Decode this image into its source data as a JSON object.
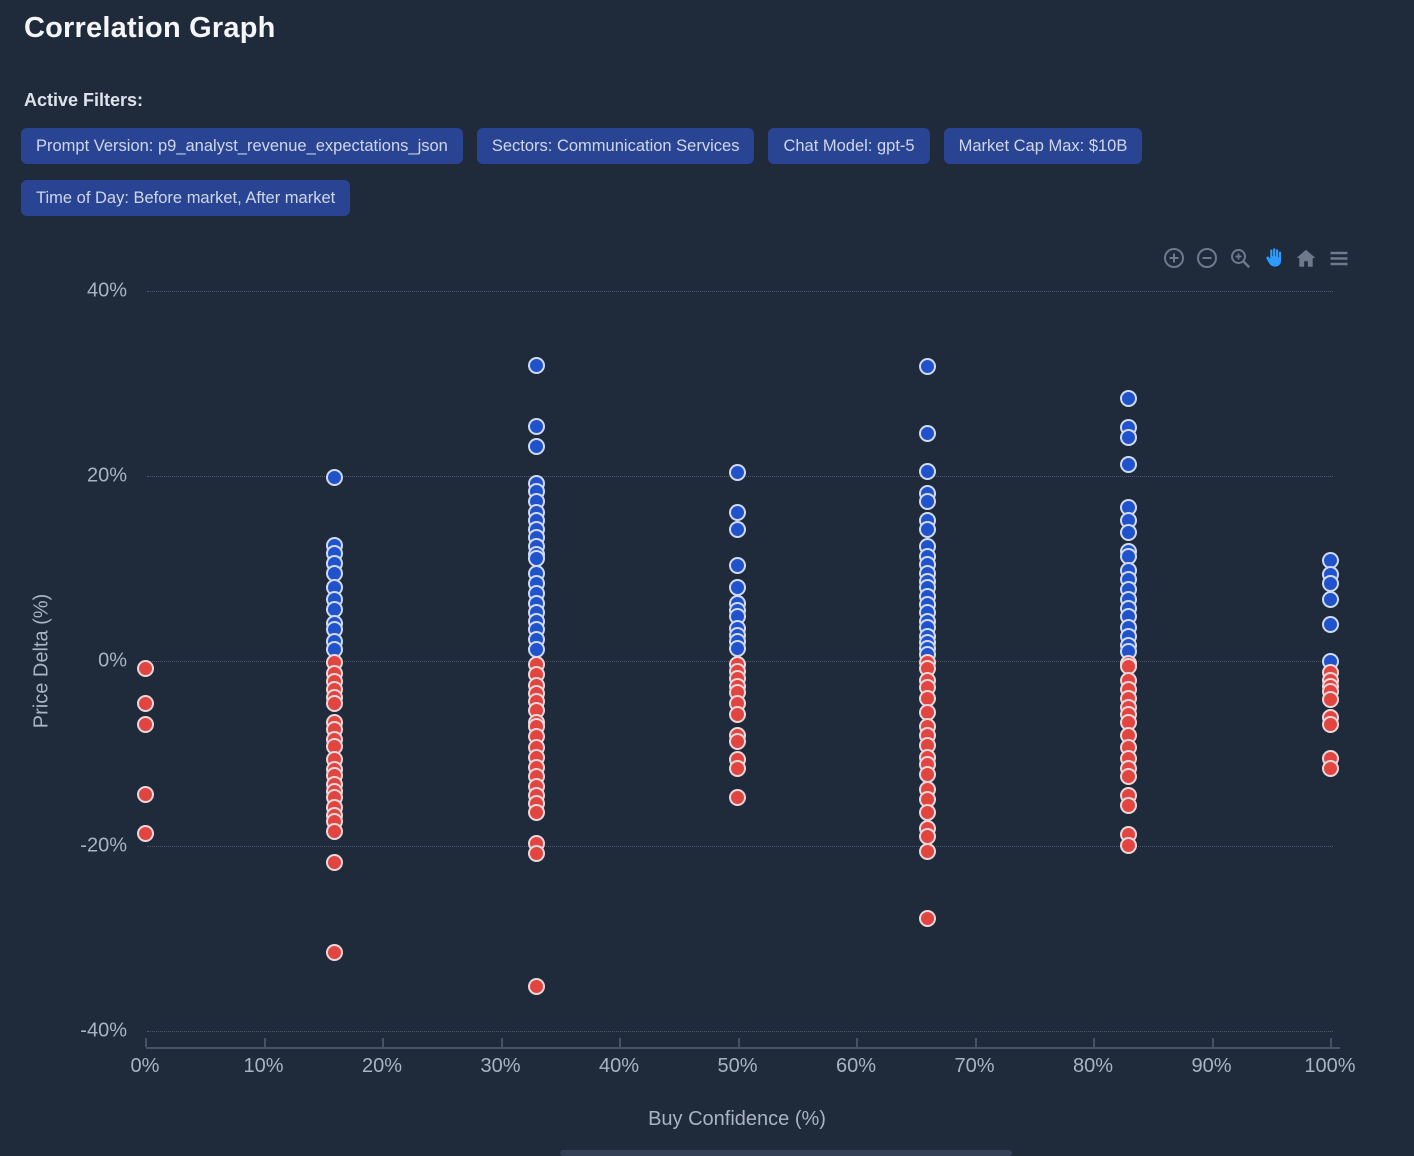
{
  "page": {
    "title": "Correlation Graph"
  },
  "filters": {
    "label": "Active Filters:",
    "chips": [
      {
        "label": "Prompt Version: p9_analyst_revenue_expectations_json"
      },
      {
        "label": "Sectors: Communication Services"
      },
      {
        "label": "Chat Model: gpt-5"
      },
      {
        "label": "Market Cap Max: $10B"
      },
      {
        "label": "Time of Day: Before market, After market"
      }
    ]
  },
  "toolbar": {
    "icons": [
      "zoom-in",
      "zoom-out",
      "box-zoom",
      "pan",
      "reset-home",
      "menu"
    ],
    "icon_color": "#6E7A8B",
    "active_icon": "pan",
    "active_color": "#2E9BFF"
  },
  "chart_data": {
    "type": "scatter",
    "title": "",
    "xlabel": "Buy Confidence (%)",
    "ylabel": "Price Delta (%)",
    "xlim": [
      0,
      100
    ],
    "ylim": [
      -42,
      42
    ],
    "grid": true,
    "x_ticks": [
      {
        "label": "0%",
        "value": 0
      },
      {
        "label": "10%",
        "value": 10
      },
      {
        "label": "20%",
        "value": 20
      },
      {
        "label": "30%",
        "value": 30
      },
      {
        "label": "40%",
        "value": 40
      },
      {
        "label": "50%",
        "value": 50
      },
      {
        "label": "60%",
        "value": 60
      },
      {
        "label": "70%",
        "value": 70
      },
      {
        "label": "80%",
        "value": 80
      },
      {
        "label": "90%",
        "value": 90
      },
      {
        "label": "100%",
        "value": 100
      }
    ],
    "y_ticks": [
      {
        "label": "40%",
        "value": 40
      },
      {
        "label": "20%",
        "value": 20
      },
      {
        "label": "0%",
        "value": 0
      },
      {
        "label": "-20%",
        "value": -20
      },
      {
        "label": "-40%",
        "value": -40
      }
    ],
    "series": [
      {
        "name": "positive-delta",
        "color": "#2052CC",
        "points": [
          [
            16,
            19.8
          ],
          [
            16,
            12.5
          ],
          [
            16,
            11.6
          ],
          [
            16,
            10.5
          ],
          [
            16,
            9.5
          ],
          [
            16,
            7.9
          ],
          [
            16,
            6.6
          ],
          [
            16,
            5.6
          ],
          [
            16,
            4.1
          ],
          [
            16,
            3.4
          ],
          [
            16,
            2.1
          ],
          [
            16,
            1.2
          ],
          [
            33,
            32.0
          ],
          [
            33,
            25.3
          ],
          [
            33,
            23.2
          ],
          [
            33,
            19.2
          ],
          [
            33,
            18.3
          ],
          [
            33,
            17.2
          ],
          [
            33,
            16.1
          ],
          [
            33,
            15.2
          ],
          [
            33,
            14.2
          ],
          [
            33,
            13.3
          ],
          [
            33,
            12.4
          ],
          [
            33,
            11.5
          ],
          [
            33,
            11.1
          ],
          [
            33,
            9.5
          ],
          [
            33,
            8.4
          ],
          [
            33,
            7.3
          ],
          [
            33,
            6.2
          ],
          [
            33,
            5.2
          ],
          [
            33,
            4.3
          ],
          [
            33,
            3.4
          ],
          [
            33,
            2.3
          ],
          [
            33,
            1.2
          ],
          [
            50,
            20.4
          ],
          [
            50,
            16.1
          ],
          [
            50,
            14.2
          ],
          [
            50,
            10.3
          ],
          [
            50,
            7.9
          ],
          [
            50,
            6.2
          ],
          [
            50,
            5.5
          ],
          [
            50,
            4.8
          ],
          [
            50,
            3.5
          ],
          [
            50,
            2.8
          ],
          [
            50,
            2.1
          ],
          [
            50,
            1.4
          ],
          [
            66,
            31.8
          ],
          [
            66,
            24.6
          ],
          [
            66,
            20.5
          ],
          [
            66,
            18.1
          ],
          [
            66,
            17.2
          ],
          [
            66,
            15.2
          ],
          [
            66,
            14.2
          ],
          [
            66,
            12.4
          ],
          [
            66,
            11.3
          ],
          [
            66,
            10.4
          ],
          [
            66,
            9.5
          ],
          [
            66,
            8.6
          ],
          [
            66,
            7.9
          ],
          [
            66,
            7.0
          ],
          [
            66,
            6.1
          ],
          [
            66,
            5.2
          ],
          [
            66,
            4.3
          ],
          [
            66,
            3.6
          ],
          [
            66,
            2.7
          ],
          [
            66,
            2.0
          ],
          [
            66,
            1.3
          ],
          [
            66,
            0.7
          ],
          [
            83,
            28.4
          ],
          [
            83,
            25.2
          ],
          [
            83,
            24.2
          ],
          [
            83,
            21.2
          ],
          [
            83,
            16.6
          ],
          [
            83,
            15.2
          ],
          [
            83,
            13.9
          ],
          [
            83,
            11.8
          ],
          [
            83,
            11.3
          ],
          [
            83,
            9.8
          ],
          [
            83,
            8.8
          ],
          [
            83,
            7.7
          ],
          [
            83,
            6.6
          ],
          [
            83,
            5.7
          ],
          [
            83,
            4.8
          ],
          [
            83,
            3.6
          ],
          [
            83,
            2.6
          ],
          [
            83,
            1.7
          ],
          [
            83,
            1.0
          ],
          [
            100,
            10.9
          ],
          [
            100,
            9.3
          ],
          [
            100,
            8.4
          ],
          [
            100,
            6.6
          ],
          [
            100,
            3.9
          ],
          [
            100,
            0.0
          ]
        ]
      },
      {
        "name": "negative-delta",
        "color": "#E2453F",
        "points": [
          [
            0,
            -0.8
          ],
          [
            0,
            -4.6
          ],
          [
            0,
            -6.9
          ],
          [
            0,
            -14.4
          ],
          [
            0,
            -18.7
          ],
          [
            16,
            -0.2
          ],
          [
            16,
            -1.4
          ],
          [
            16,
            -2.2
          ],
          [
            16,
            -3.1
          ],
          [
            16,
            -3.9
          ],
          [
            16,
            -4.6
          ],
          [
            16,
            -6.6
          ],
          [
            16,
            -7.4
          ],
          [
            16,
            -8.5
          ],
          [
            16,
            -9.2
          ],
          [
            16,
            -10.7
          ],
          [
            16,
            -11.7
          ],
          [
            16,
            -12.4
          ],
          [
            16,
            -13.3
          ],
          [
            16,
            -14.1
          ],
          [
            16,
            -14.8
          ],
          [
            16,
            -15.8
          ],
          [
            16,
            -16.7
          ],
          [
            16,
            -17.4
          ],
          [
            16,
            -18.4
          ],
          [
            16,
            -21.8
          ],
          [
            16,
            -31.5
          ],
          [
            33,
            -0.4
          ],
          [
            33,
            -1.5
          ],
          [
            33,
            -2.6
          ],
          [
            33,
            -3.5
          ],
          [
            33,
            -4.4
          ],
          [
            33,
            -5.3
          ],
          [
            33,
            -6.6
          ],
          [
            33,
            -7.1
          ],
          [
            33,
            -8.2
          ],
          [
            33,
            -9.3
          ],
          [
            33,
            -10.4
          ],
          [
            33,
            -11.5
          ],
          [
            33,
            -12.5
          ],
          [
            33,
            -13.6
          ],
          [
            33,
            -14.5
          ],
          [
            33,
            -15.4
          ],
          [
            33,
            -16.4
          ],
          [
            33,
            -19.7
          ],
          [
            33,
            -20.8
          ],
          [
            33,
            -35.2
          ],
          [
            50,
            -0.4
          ],
          [
            50,
            -1.1
          ],
          [
            50,
            -1.9
          ],
          [
            50,
            -2.8
          ],
          [
            50,
            -3.4
          ],
          [
            50,
            -4.6
          ],
          [
            50,
            -5.8
          ],
          [
            50,
            -8.0
          ],
          [
            50,
            -8.7
          ],
          [
            50,
            -10.7
          ],
          [
            50,
            -11.6
          ],
          [
            50,
            -14.8
          ],
          [
            66,
            -0.2
          ],
          [
            66,
            -0.8
          ],
          [
            66,
            -2.1
          ],
          [
            66,
            -2.9
          ],
          [
            66,
            -4.0
          ],
          [
            66,
            -5.6
          ],
          [
            66,
            -7.1
          ],
          [
            66,
            -8.0
          ],
          [
            66,
            -9.1
          ],
          [
            66,
            -10.4
          ],
          [
            66,
            -11.2
          ],
          [
            66,
            -12.3
          ],
          [
            66,
            -13.9
          ],
          [
            66,
            -15.0
          ],
          [
            66,
            -16.4
          ],
          [
            66,
            -18.1
          ],
          [
            66,
            -19.0
          ],
          [
            66,
            -20.6
          ],
          [
            66,
            -27.8
          ],
          [
            83,
            -0.3
          ],
          [
            83,
            -0.6
          ],
          [
            83,
            -2.1
          ],
          [
            83,
            -3.1
          ],
          [
            83,
            -4.0
          ],
          [
            83,
            -5.0
          ],
          [
            83,
            -5.8
          ],
          [
            83,
            -6.7
          ],
          [
            83,
            -8.0
          ],
          [
            83,
            -9.4
          ],
          [
            83,
            -10.5
          ],
          [
            83,
            -11.6
          ],
          [
            83,
            -12.5
          ],
          [
            83,
            -14.5
          ],
          [
            83,
            -15.6
          ],
          [
            83,
            -18.8
          ],
          [
            83,
            -19.9
          ],
          [
            100,
            -1.2
          ],
          [
            100,
            -2.1
          ],
          [
            100,
            -2.8
          ],
          [
            100,
            -3.3
          ],
          [
            100,
            -4.2
          ],
          [
            100,
            -6.1
          ],
          [
            100,
            -6.9
          ],
          [
            100,
            -10.5
          ],
          [
            100,
            -11.6
          ]
        ]
      }
    ]
  },
  "colors": {
    "background": "#1F2A3A",
    "chip_background": "#2A4494",
    "chip_text": "#CFD7E6",
    "axis_text": "#A9B3C1",
    "grid": "rgba(163,177,196,0.34)",
    "positive_dot": "#2052CC",
    "negative_dot": "#E2453F"
  }
}
